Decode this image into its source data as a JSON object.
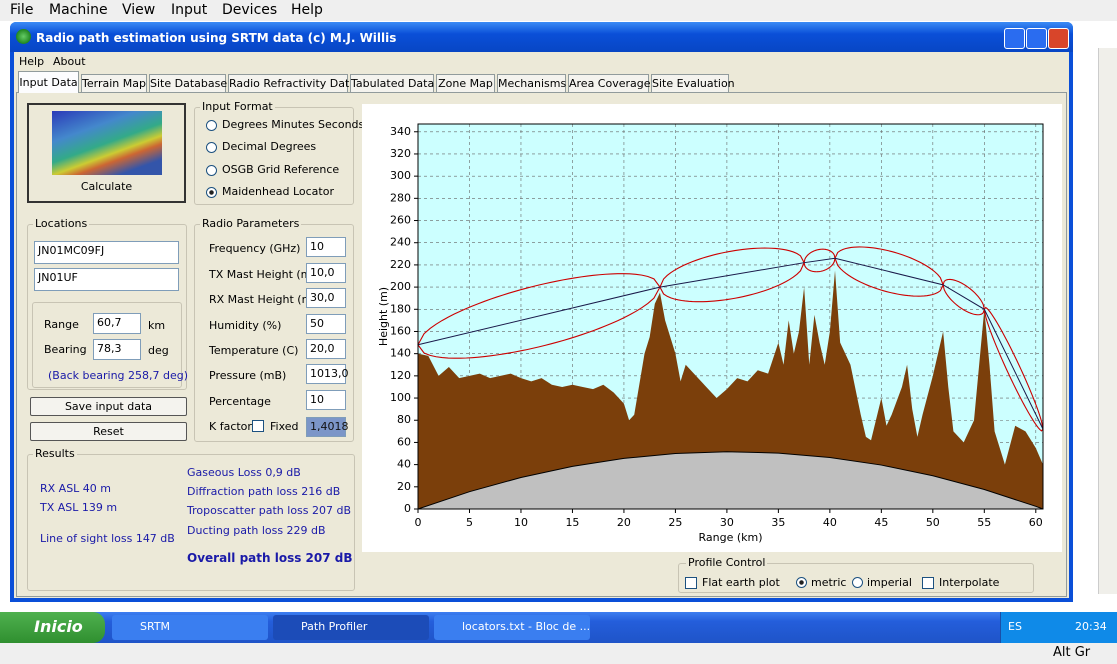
{
  "menubar": [
    "File",
    "Machine",
    "View",
    "Input",
    "Devices",
    "Help"
  ],
  "window": {
    "title": "Radio path estimation using SRTM data (c) M.J. Willis",
    "menu": [
      "Help",
      "About"
    ],
    "tabs": [
      "Input Data",
      "Terrain Map",
      "Site Database",
      "Radio Refractivity Data",
      "Tabulated Data",
      "Zone Map",
      "Mechanisms",
      "Area Coverage",
      "Site Evaluation"
    ]
  },
  "calculate": "Calculate",
  "input_format": {
    "label": "Input Format",
    "options": [
      "Degrees Minutes Seconds",
      "Decimal Degrees",
      "OSGB Grid Reference",
      "Maidenhead Locator"
    ],
    "selected": 3
  },
  "locations": {
    "label": "Locations",
    "tx": "JN01MC09FJ",
    "rx": "JN01UF",
    "range_label": "Range",
    "range": "60,7",
    "range_unit": "km",
    "bearing_label": "Bearing",
    "bearing": "78,3",
    "bearing_unit": "deg",
    "back_bearing": "(Back bearing 258,7 deg)"
  },
  "buttons": [
    "Save input data",
    "Reset"
  ],
  "radio_parameters": {
    "label": "Radio Parameters",
    "rows": [
      {
        "label": "Frequency (GHz)",
        "value": "10"
      },
      {
        "label": "TX Mast Height (m)",
        "value": "10,0"
      },
      {
        "label": "RX Mast Height (m)",
        "value": "30,0"
      },
      {
        "label": "Humidity (%)",
        "value": "50"
      },
      {
        "label": "Temperature (C)",
        "value": "20,0"
      },
      {
        "label": "Pressure (mB)",
        "value": "1013,0"
      },
      {
        "label": "Percentage",
        "value": "10"
      }
    ],
    "k_factor": {
      "label": "K factor",
      "fixed": "Fixed",
      "value": "1,4018"
    }
  },
  "results": {
    "label": "Results",
    "rx_asl": "RX ASL 40 m",
    "tx_asl": "TX ASL 139 m",
    "los": "Line of sight loss 147 dB",
    "gaseous": "Gaseous Loss 0,9 dB",
    "diffraction": "Diffraction path loss 216 dB",
    "troposcatter": "Troposcatter path loss 207 dB",
    "ducting": "Ducting path loss 229 dB",
    "overall": "Overall path loss 207 dB"
  },
  "chart_data": {
    "type": "area",
    "xlabel": "Range (km)",
    "ylabel": "Height (m)",
    "xlim": [
      0,
      60.7
    ],
    "ylim": [
      0,
      347
    ],
    "xticks": [
      0,
      5,
      10,
      15,
      20,
      25,
      30,
      35,
      40,
      45,
      50,
      55,
      60
    ],
    "yticks": [
      0,
      20,
      40,
      60,
      80,
      100,
      120,
      140,
      160,
      180,
      200,
      220,
      240,
      260,
      280,
      300,
      320,
      340
    ],
    "grid": true,
    "background": "#ccffff",
    "terrain": {
      "color": "#7b3f0b",
      "x": [
        0,
        1,
        2,
        3,
        4,
        5,
        6,
        7,
        8,
        9,
        10,
        11,
        12,
        13,
        14,
        15,
        16,
        17,
        18,
        19,
        20,
        20.5,
        21,
        22,
        22.5,
        23,
        23.5,
        24,
        25,
        25.5,
        26,
        27,
        28,
        29,
        30,
        31,
        32,
        33,
        34,
        35,
        35.5,
        36,
        36.5,
        37,
        37.5,
        38,
        38.5,
        39,
        39.5,
        40,
        40.5,
        41,
        42,
        43,
        43.5,
        44,
        45,
        45.5,
        46,
        47,
        47.5,
        48,
        48.5,
        49,
        50,
        51,
        51.5,
        52,
        53,
        54,
        55,
        55.5,
        56,
        57,
        58,
        59,
        60,
        60.7
      ],
      "values": [
        140,
        138,
        120,
        128,
        118,
        120,
        122,
        118,
        120,
        122,
        118,
        115,
        118,
        112,
        110,
        112,
        110,
        108,
        112,
        105,
        95,
        80,
        85,
        140,
        155,
        185,
        195,
        170,
        140,
        115,
        130,
        120,
        110,
        100,
        108,
        118,
        115,
        125,
        122,
        150,
        130,
        170,
        140,
        160,
        200,
        130,
        175,
        150,
        130,
        160,
        215,
        150,
        130,
        85,
        65,
        62,
        100,
        75,
        85,
        110,
        130,
        90,
        65,
        85,
        120,
        160,
        110,
        70,
        60,
        80,
        180,
        130,
        70,
        40,
        75,
        70,
        55,
        40
      ]
    },
    "earth_bulge": {
      "color": "#c0c0c0",
      "x": [
        0,
        5,
        10,
        15,
        20,
        25,
        30,
        35,
        40,
        45,
        50,
        55,
        60,
        60.7
      ],
      "values": [
        0,
        15.6,
        28.4,
        38.4,
        45.6,
        50,
        51.6,
        50.4,
        46.4,
        39.6,
        30,
        17.6,
        2.4,
        0
      ]
    },
    "path": {
      "color": "#1a1a4a",
      "x": [
        0,
        23.5,
        37.5,
        40.5,
        51,
        55,
        60.7
      ],
      "values": [
        148,
        200,
        222,
        226,
        202,
        180,
        72
      ]
    },
    "fresnel_color": "#cc0000"
  },
  "profile_control": {
    "label": "Profile Control",
    "flat": "Flat earth plot",
    "metric": "metric",
    "imperial": "imperial",
    "interpolate": "Interpolate"
  },
  "taskbar": {
    "start": "Inicio",
    "items": [
      "SRTM",
      "Path Profiler",
      "locators.txt - Bloc de ..."
    ],
    "lang": "ES",
    "time": "20:34",
    "altgr": "Alt Gr"
  }
}
